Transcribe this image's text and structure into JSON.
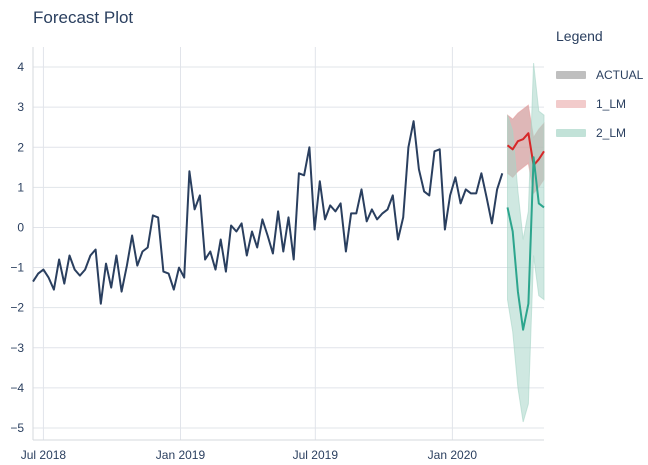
{
  "title": "Forecast Plot",
  "legend": {
    "title": "Legend",
    "items": [
      {
        "label": "ACTUAL",
        "color": "#808080",
        "opacity": 0.5
      },
      {
        "label": "1_LM",
        "color": "#e8a0a0",
        "opacity": 0.55
      },
      {
        "label": "2_LM",
        "color": "#a8d5c8",
        "opacity": 0.7
      }
    ]
  },
  "chart_data": {
    "type": "line",
    "title": "Forecast Plot",
    "xlabel": "",
    "ylabel": "",
    "ylim": [
      -5.3,
      4.5
    ],
    "grid": true,
    "legend_position": "right",
    "x_ticks": [
      {
        "label": "Jul 2018",
        "value": "2018-07-01"
      },
      {
        "label": "Jan 2019",
        "value": "2019-01-01"
      },
      {
        "label": "Jul 2019",
        "value": "2019-07-01"
      },
      {
        "label": "Jan 2020",
        "value": "2020-01-01"
      }
    ],
    "y_ticks": [
      4,
      3,
      2,
      1,
      0,
      -1,
      -2,
      -3,
      -4,
      -5
    ],
    "series": [
      {
        "name": "ACTUAL",
        "color": "#2a3f5f",
        "points": [
          [
            "2018-06-17",
            -1.35
          ],
          [
            "2018-06-24",
            -1.15
          ],
          [
            "2018-07-01",
            -1.05
          ],
          [
            "2018-07-08",
            -1.25
          ],
          [
            "2018-07-15",
            -1.55
          ],
          [
            "2018-07-22",
            -0.8
          ],
          [
            "2018-07-29",
            -1.4
          ],
          [
            "2018-08-05",
            -0.7
          ],
          [
            "2018-08-12",
            -1.05
          ],
          [
            "2018-08-19",
            -1.2
          ],
          [
            "2018-08-26",
            -1.05
          ],
          [
            "2018-09-02",
            -0.7
          ],
          [
            "2018-09-09",
            -0.55
          ],
          [
            "2018-09-16",
            -1.9
          ],
          [
            "2018-09-23",
            -0.9
          ],
          [
            "2018-09-30",
            -1.5
          ],
          [
            "2018-10-07",
            -0.7
          ],
          [
            "2018-10-14",
            -1.6
          ],
          [
            "2018-10-21",
            -0.95
          ],
          [
            "2018-10-28",
            -0.2
          ],
          [
            "2018-11-04",
            -0.95
          ],
          [
            "2018-11-11",
            -0.6
          ],
          [
            "2018-11-18",
            -0.5
          ],
          [
            "2018-11-25",
            0.3
          ],
          [
            "2018-12-02",
            0.25
          ],
          [
            "2018-12-09",
            -1.1
          ],
          [
            "2018-12-16",
            -1.15
          ],
          [
            "2018-12-23",
            -1.55
          ],
          [
            "2018-12-30",
            -1.0
          ],
          [
            "2019-01-06",
            -1.25
          ],
          [
            "2019-01-13",
            1.4
          ],
          [
            "2019-01-20",
            0.45
          ],
          [
            "2019-01-27",
            0.8
          ],
          [
            "2019-02-03",
            -0.8
          ],
          [
            "2019-02-10",
            -0.6
          ],
          [
            "2019-02-17",
            -1.05
          ],
          [
            "2019-02-24",
            -0.3
          ],
          [
            "2019-03-03",
            -1.1
          ],
          [
            "2019-03-10",
            0.05
          ],
          [
            "2019-03-17",
            -0.1
          ],
          [
            "2019-03-24",
            0.1
          ],
          [
            "2019-03-31",
            -0.7
          ],
          [
            "2019-04-07",
            -0.1
          ],
          [
            "2019-04-14",
            -0.5
          ],
          [
            "2019-04-21",
            0.2
          ],
          [
            "2019-04-28",
            -0.2
          ],
          [
            "2019-05-05",
            -0.65
          ],
          [
            "2019-05-12",
            0.4
          ],
          [
            "2019-05-19",
            -0.6
          ],
          [
            "2019-05-26",
            0.25
          ],
          [
            "2019-06-02",
            -0.8
          ],
          [
            "2019-06-09",
            1.35
          ],
          [
            "2019-06-16",
            1.3
          ],
          [
            "2019-06-23",
            2.0
          ],
          [
            "2019-06-30",
            -0.05
          ],
          [
            "2019-07-07",
            1.15
          ],
          [
            "2019-07-14",
            0.2
          ],
          [
            "2019-07-21",
            0.55
          ],
          [
            "2019-07-28",
            0.4
          ],
          [
            "2019-08-04",
            0.6
          ],
          [
            "2019-08-11",
            -0.6
          ],
          [
            "2019-08-18",
            0.35
          ],
          [
            "2019-08-25",
            0.35
          ],
          [
            "2019-09-01",
            0.95
          ],
          [
            "2019-09-08",
            0.15
          ],
          [
            "2019-09-15",
            0.45
          ],
          [
            "2019-09-22",
            0.2
          ],
          [
            "2019-09-29",
            0.35
          ],
          [
            "2019-10-06",
            0.45
          ],
          [
            "2019-10-13",
            0.8
          ],
          [
            "2019-10-20",
            -0.3
          ],
          [
            "2019-10-27",
            0.25
          ],
          [
            "2019-11-03",
            2.0
          ],
          [
            "2019-11-10",
            2.65
          ],
          [
            "2019-11-17",
            1.45
          ],
          [
            "2019-11-24",
            0.9
          ],
          [
            "2019-12-01",
            0.8
          ],
          [
            "2019-12-08",
            1.9
          ],
          [
            "2019-12-15",
            1.95
          ],
          [
            "2019-12-22",
            -0.05
          ],
          [
            "2019-12-29",
            0.8
          ],
          [
            "2020-01-05",
            1.25
          ],
          [
            "2020-01-12",
            0.6
          ],
          [
            "2020-01-19",
            0.95
          ],
          [
            "2020-01-26",
            0.85
          ],
          [
            "2020-02-02",
            0.85
          ],
          [
            "2020-02-09",
            1.35
          ],
          [
            "2020-02-16",
            0.75
          ],
          [
            "2020-02-23",
            0.1
          ],
          [
            "2020-03-01",
            0.95
          ],
          [
            "2020-03-08",
            1.35
          ]
        ]
      },
      {
        "name": "1_LM",
        "color": "#d62728",
        "band_color": "#e8a0a0",
        "points": [
          [
            "2020-03-15",
            2.05,
            1.35,
            2.8
          ],
          [
            "2020-03-22",
            1.95,
            1.25,
            2.7
          ],
          [
            "2020-03-29",
            2.15,
            1.4,
            2.85
          ],
          [
            "2020-04-05",
            2.2,
            1.5,
            2.95
          ],
          [
            "2020-04-12",
            2.35,
            1.6,
            3.05
          ],
          [
            "2020-04-19",
            1.55,
            0.85,
            2.25
          ],
          [
            "2020-04-26",
            1.7,
            1.0,
            2.45
          ],
          [
            "2020-05-03",
            1.9,
            1.2,
            2.6
          ]
        ]
      },
      {
        "name": "2_LM",
        "color": "#2ca58d",
        "band_color": "#a8d5c8",
        "points": [
          [
            "2020-03-15",
            0.5,
            -1.8,
            2.8
          ],
          [
            "2020-03-22",
            -0.1,
            -2.6,
            2.4
          ],
          [
            "2020-03-29",
            -1.6,
            -4.0,
            0.9
          ],
          [
            "2020-04-05",
            -2.55,
            -4.85,
            -0.3
          ],
          [
            "2020-04-12",
            -1.9,
            -4.4,
            0.4
          ],
          [
            "2020-04-19",
            1.75,
            -0.7,
            4.1
          ],
          [
            "2020-04-26",
            0.6,
            -1.7,
            2.9
          ],
          [
            "2020-05-03",
            0.5,
            -1.8,
            2.8
          ]
        ]
      }
    ]
  }
}
